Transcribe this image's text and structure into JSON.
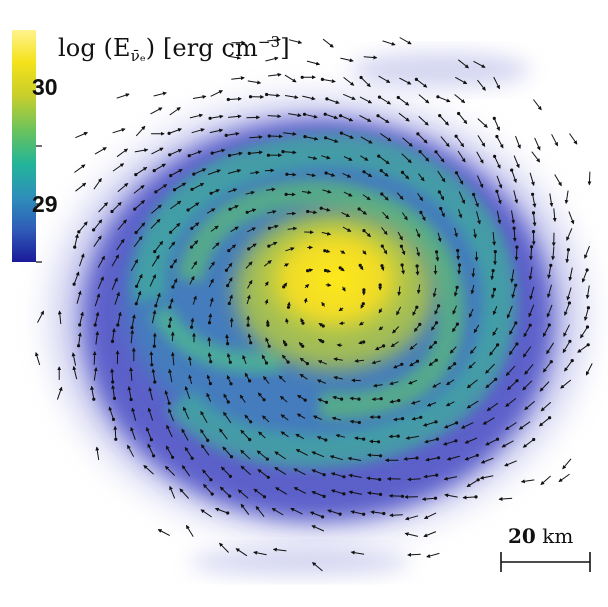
{
  "colorbar": {
    "title_prefix": "log (E",
    "title_subscript": "ν̄ₑ",
    "title_unit_open": ") [erg cm",
    "title_superscript": "−3",
    "title_unit_close": "]",
    "tick_high": "30",
    "tick_low": "29",
    "gradient": [
      "#1b1a9a",
      "#2f5cb8",
      "#2e8fba",
      "#22b59a",
      "#6cc35b",
      "#c9cf2b",
      "#f4e21a",
      "#fff38e"
    ]
  },
  "scale_bar": {
    "value": "20",
    "unit": "km"
  },
  "colors": {
    "outer_disk": "#4b4fc4",
    "mid_disk": "#3e86b9",
    "spiral_arm": "#3fae9b",
    "core": "#f1de25",
    "arrows": "#111111"
  }
}
